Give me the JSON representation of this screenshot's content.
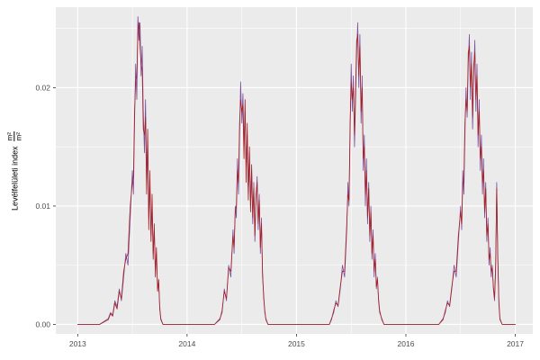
{
  "figure": {
    "background": "#FFFFFF"
  },
  "chart_data": {
    "type": "line",
    "title": "",
    "xlabel": "",
    "ylabel_text": "Levélfelületi index m²/m²",
    "ylabel_parts": {
      "text": "Levélfelületi index",
      "numerator": "m²",
      "denominator": "m²"
    },
    "x_tick_labels": [
      "2013",
      "2014",
      "2015",
      "2016",
      "2017"
    ],
    "x_tick_values": [
      2013,
      2014,
      2015,
      2016,
      2017
    ],
    "y_tick_labels": [
      "0.00",
      "0.01",
      "0.02"
    ],
    "y_tick_values": [
      0,
      0.01,
      0.02
    ],
    "x_minor": [
      2013.5,
      2014.5,
      2015.5,
      2016.5
    ],
    "y_minor": [
      0.005,
      0.015,
      0.025
    ],
    "xlim": [
      2012.8,
      2017.16
    ],
    "ylim": [
      -0.0008,
      0.0268
    ],
    "grid": true,
    "legend": "none",
    "style": {
      "panel_bg": "#EBEBEB",
      "grid_major": "#FFFFFF",
      "grid_minor": "#FFFFFF",
      "tick_label_color": "#4D4D4D",
      "tick_mark_color": "#333333",
      "axis_title_color": "#000000"
    },
    "x": [
      2013.0,
      2013.1,
      2013.2,
      2013.28,
      2013.3,
      2013.32,
      2013.34,
      2013.36,
      2013.38,
      2013.4,
      2013.42,
      2013.44,
      2013.46,
      2013.48,
      2013.5,
      2013.51,
      2013.52,
      2013.53,
      2013.54,
      2013.55,
      2013.56,
      2013.57,
      2013.58,
      2013.59,
      2013.6,
      2013.61,
      2013.62,
      2013.63,
      2013.64,
      2013.65,
      2013.66,
      2013.67,
      2013.68,
      2013.69,
      2013.7,
      2013.71,
      2013.72,
      2013.73,
      2013.74,
      2013.75,
      2013.76,
      2013.78,
      2013.85,
      2013.95,
      2014.05,
      2014.15,
      2014.25,
      2014.3,
      2014.32,
      2014.34,
      2014.36,
      2014.38,
      2014.4,
      2014.42,
      2014.43,
      2014.44,
      2014.45,
      2014.46,
      2014.47,
      2014.48,
      2014.49,
      2014.5,
      2014.51,
      2014.52,
      2014.53,
      2014.54,
      2014.55,
      2014.56,
      2014.57,
      2014.58,
      2014.59,
      2014.6,
      2014.61,
      2014.62,
      2014.63,
      2014.64,
      2014.65,
      2014.66,
      2014.67,
      2014.68,
      2014.69,
      2014.7,
      2014.71,
      2014.72,
      2014.74,
      2014.85,
      2014.95,
      2015.05,
      2015.15,
      2015.25,
      2015.3,
      2015.32,
      2015.34,
      2015.36,
      2015.38,
      2015.4,
      2015.42,
      2015.44,
      2015.46,
      2015.47,
      2015.48,
      2015.49,
      2015.5,
      2015.51,
      2015.52,
      2015.53,
      2015.54,
      2015.55,
      2015.56,
      2015.57,
      2015.58,
      2015.59,
      2015.6,
      2015.61,
      2015.62,
      2015.63,
      2015.64,
      2015.65,
      2015.66,
      2015.67,
      2015.68,
      2015.69,
      2015.7,
      2015.71,
      2015.72,
      2015.73,
      2015.74,
      2015.75,
      2015.76,
      2015.78,
      2015.8,
      2015.9,
      2016.0,
      2016.1,
      2016.2,
      2016.3,
      2016.34,
      2016.36,
      2016.38,
      2016.4,
      2016.42,
      2016.44,
      2016.46,
      2016.48,
      2016.5,
      2016.51,
      2016.52,
      2016.53,
      2016.54,
      2016.55,
      2016.56,
      2016.57,
      2016.58,
      2016.59,
      2016.6,
      2016.61,
      2016.62,
      2016.63,
      2016.64,
      2016.65,
      2016.66,
      2016.67,
      2016.68,
      2016.69,
      2016.7,
      2016.71,
      2016.72,
      2016.73,
      2016.74,
      2016.75,
      2016.76,
      2016.77,
      2016.78,
      2016.79,
      2016.8,
      2016.81,
      2016.82,
      2016.83,
      2016.84,
      2016.85,
      2016.86,
      2016.88,
      2016.95,
      2017.0
    ],
    "series": [
      {
        "name": "series-1-purple",
        "color": "#7A4FA0",
        "values": [
          0,
          0,
          0,
          0.0005,
          0.001,
          0.0008,
          0.002,
          0.0015,
          0.003,
          0.002,
          0.004,
          0.006,
          0.005,
          0.009,
          0.013,
          0.011,
          0.017,
          0.022,
          0.019,
          0.026,
          0.024,
          0.0255,
          0.021,
          0.0235,
          0.018,
          0.0145,
          0.019,
          0.012,
          0.0155,
          0.009,
          0.012,
          0.0075,
          0.01,
          0.006,
          0.008,
          0.0045,
          0.006,
          0.003,
          0.0035,
          0.0015,
          0.0005,
          0,
          0,
          0,
          0,
          0,
          0,
          0.0005,
          0.001,
          0.003,
          0.002,
          0.005,
          0.004,
          0.008,
          0.006,
          0.01,
          0.009,
          0.014,
          0.011,
          0.016,
          0.0205,
          0.017,
          0.0195,
          0.015,
          0.018,
          0.013,
          0.016,
          0.011,
          0.0145,
          0.01,
          0.013,
          0.0085,
          0.012,
          0.007,
          0.0105,
          0.0125,
          0.008,
          0.011,
          0.006,
          0.009,
          0.004,
          0.0025,
          0.001,
          0.0005,
          0,
          0,
          0,
          0,
          0,
          0,
          0,
          0.0005,
          0.001,
          0.002,
          0.0015,
          0.003,
          0.005,
          0.004,
          0.008,
          0.012,
          0.01,
          0.016,
          0.022,
          0.018,
          0.021,
          0.015,
          0.019,
          0.023,
          0.0255,
          0.02,
          0.0245,
          0.017,
          0.021,
          0.013,
          0.016,
          0.01,
          0.014,
          0.0085,
          0.012,
          0.007,
          0.01,
          0.0055,
          0.008,
          0.004,
          0.006,
          0.003,
          0.004,
          0.002,
          0.001,
          0.0005,
          0,
          0,
          0,
          0,
          0,
          0,
          0.0005,
          0.001,
          0.002,
          0.0015,
          0.003,
          0.005,
          0.004,
          0.007,
          0.01,
          0.008,
          0.013,
          0.011,
          0.016,
          0.02,
          0.0175,
          0.022,
          0.0245,
          0.019,
          0.023,
          0.0165,
          0.021,
          0.024,
          0.018,
          0.022,
          0.015,
          0.019,
          0.013,
          0.016,
          0.011,
          0.014,
          0.009,
          0.012,
          0.007,
          0.009,
          0.005,
          0.0065,
          0.004,
          0.005,
          0.003,
          0.002,
          0.0045,
          0.012,
          0.006,
          0.002,
          0.0005,
          0,
          0,
          0
        ]
      },
      {
        "name": "series-2-dark-red",
        "color": "#A62024",
        "values": [
          0,
          0,
          0,
          0.0004,
          0.0009,
          0.0007,
          0.0018,
          0.0013,
          0.0028,
          0.0022,
          0.0045,
          0.0055,
          0.006,
          0.01,
          0.012,
          0.0125,
          0.018,
          0.0205,
          0.021,
          0.0245,
          0.0255,
          0.0235,
          0.022,
          0.0215,
          0.0165,
          0.016,
          0.0175,
          0.011,
          0.0165,
          0.008,
          0.013,
          0.007,
          0.011,
          0.0055,
          0.0085,
          0.004,
          0.0065,
          0.0028,
          0.0038,
          0.0013,
          0.0004,
          0,
          0,
          0,
          0,
          0,
          0,
          0.0004,
          0.0012,
          0.0028,
          0.0022,
          0.0048,
          0.0045,
          0.0075,
          0.0065,
          0.0095,
          0.01,
          0.013,
          0.012,
          0.017,
          0.019,
          0.018,
          0.0185,
          0.014,
          0.019,
          0.012,
          0.017,
          0.0105,
          0.015,
          0.0095,
          0.0135,
          0.009,
          0.0115,
          0.0075,
          0.011,
          0.012,
          0.0085,
          0.0105,
          0.0065,
          0.0085,
          0.0045,
          0.0022,
          0.0012,
          0.0004,
          0,
          0,
          0,
          0,
          0,
          0,
          0,
          0.0004,
          0.0012,
          0.0018,
          0.0016,
          0.0032,
          0.0045,
          0.0045,
          0.0085,
          0.011,
          0.0105,
          0.017,
          0.0205,
          0.019,
          0.02,
          0.016,
          0.02,
          0.024,
          0.0245,
          0.021,
          0.0235,
          0.018,
          0.02,
          0.014,
          0.015,
          0.011,
          0.013,
          0.009,
          0.0115,
          0.0075,
          0.0095,
          0.006,
          0.0075,
          0.0045,
          0.0055,
          0.0032,
          0.0038,
          0.0022,
          0.0012,
          0.0004,
          0,
          0,
          0,
          0,
          0,
          0,
          0.0004,
          0.0012,
          0.0018,
          0.0016,
          0.0032,
          0.0045,
          0.0045,
          0.0075,
          0.0095,
          0.0085,
          0.012,
          0.012,
          0.017,
          0.019,
          0.018,
          0.023,
          0.0235,
          0.02,
          0.022,
          0.0175,
          0.022,
          0.023,
          0.019,
          0.021,
          0.016,
          0.018,
          0.014,
          0.015,
          0.012,
          0.013,
          0.0095,
          0.0115,
          0.0075,
          0.0085,
          0.0055,
          0.006,
          0.0045,
          0.0048,
          0.0032,
          0.0022,
          0.005,
          0.0115,
          0.0055,
          0.0018,
          0.0004,
          0,
          0,
          0
        ]
      }
    ]
  }
}
